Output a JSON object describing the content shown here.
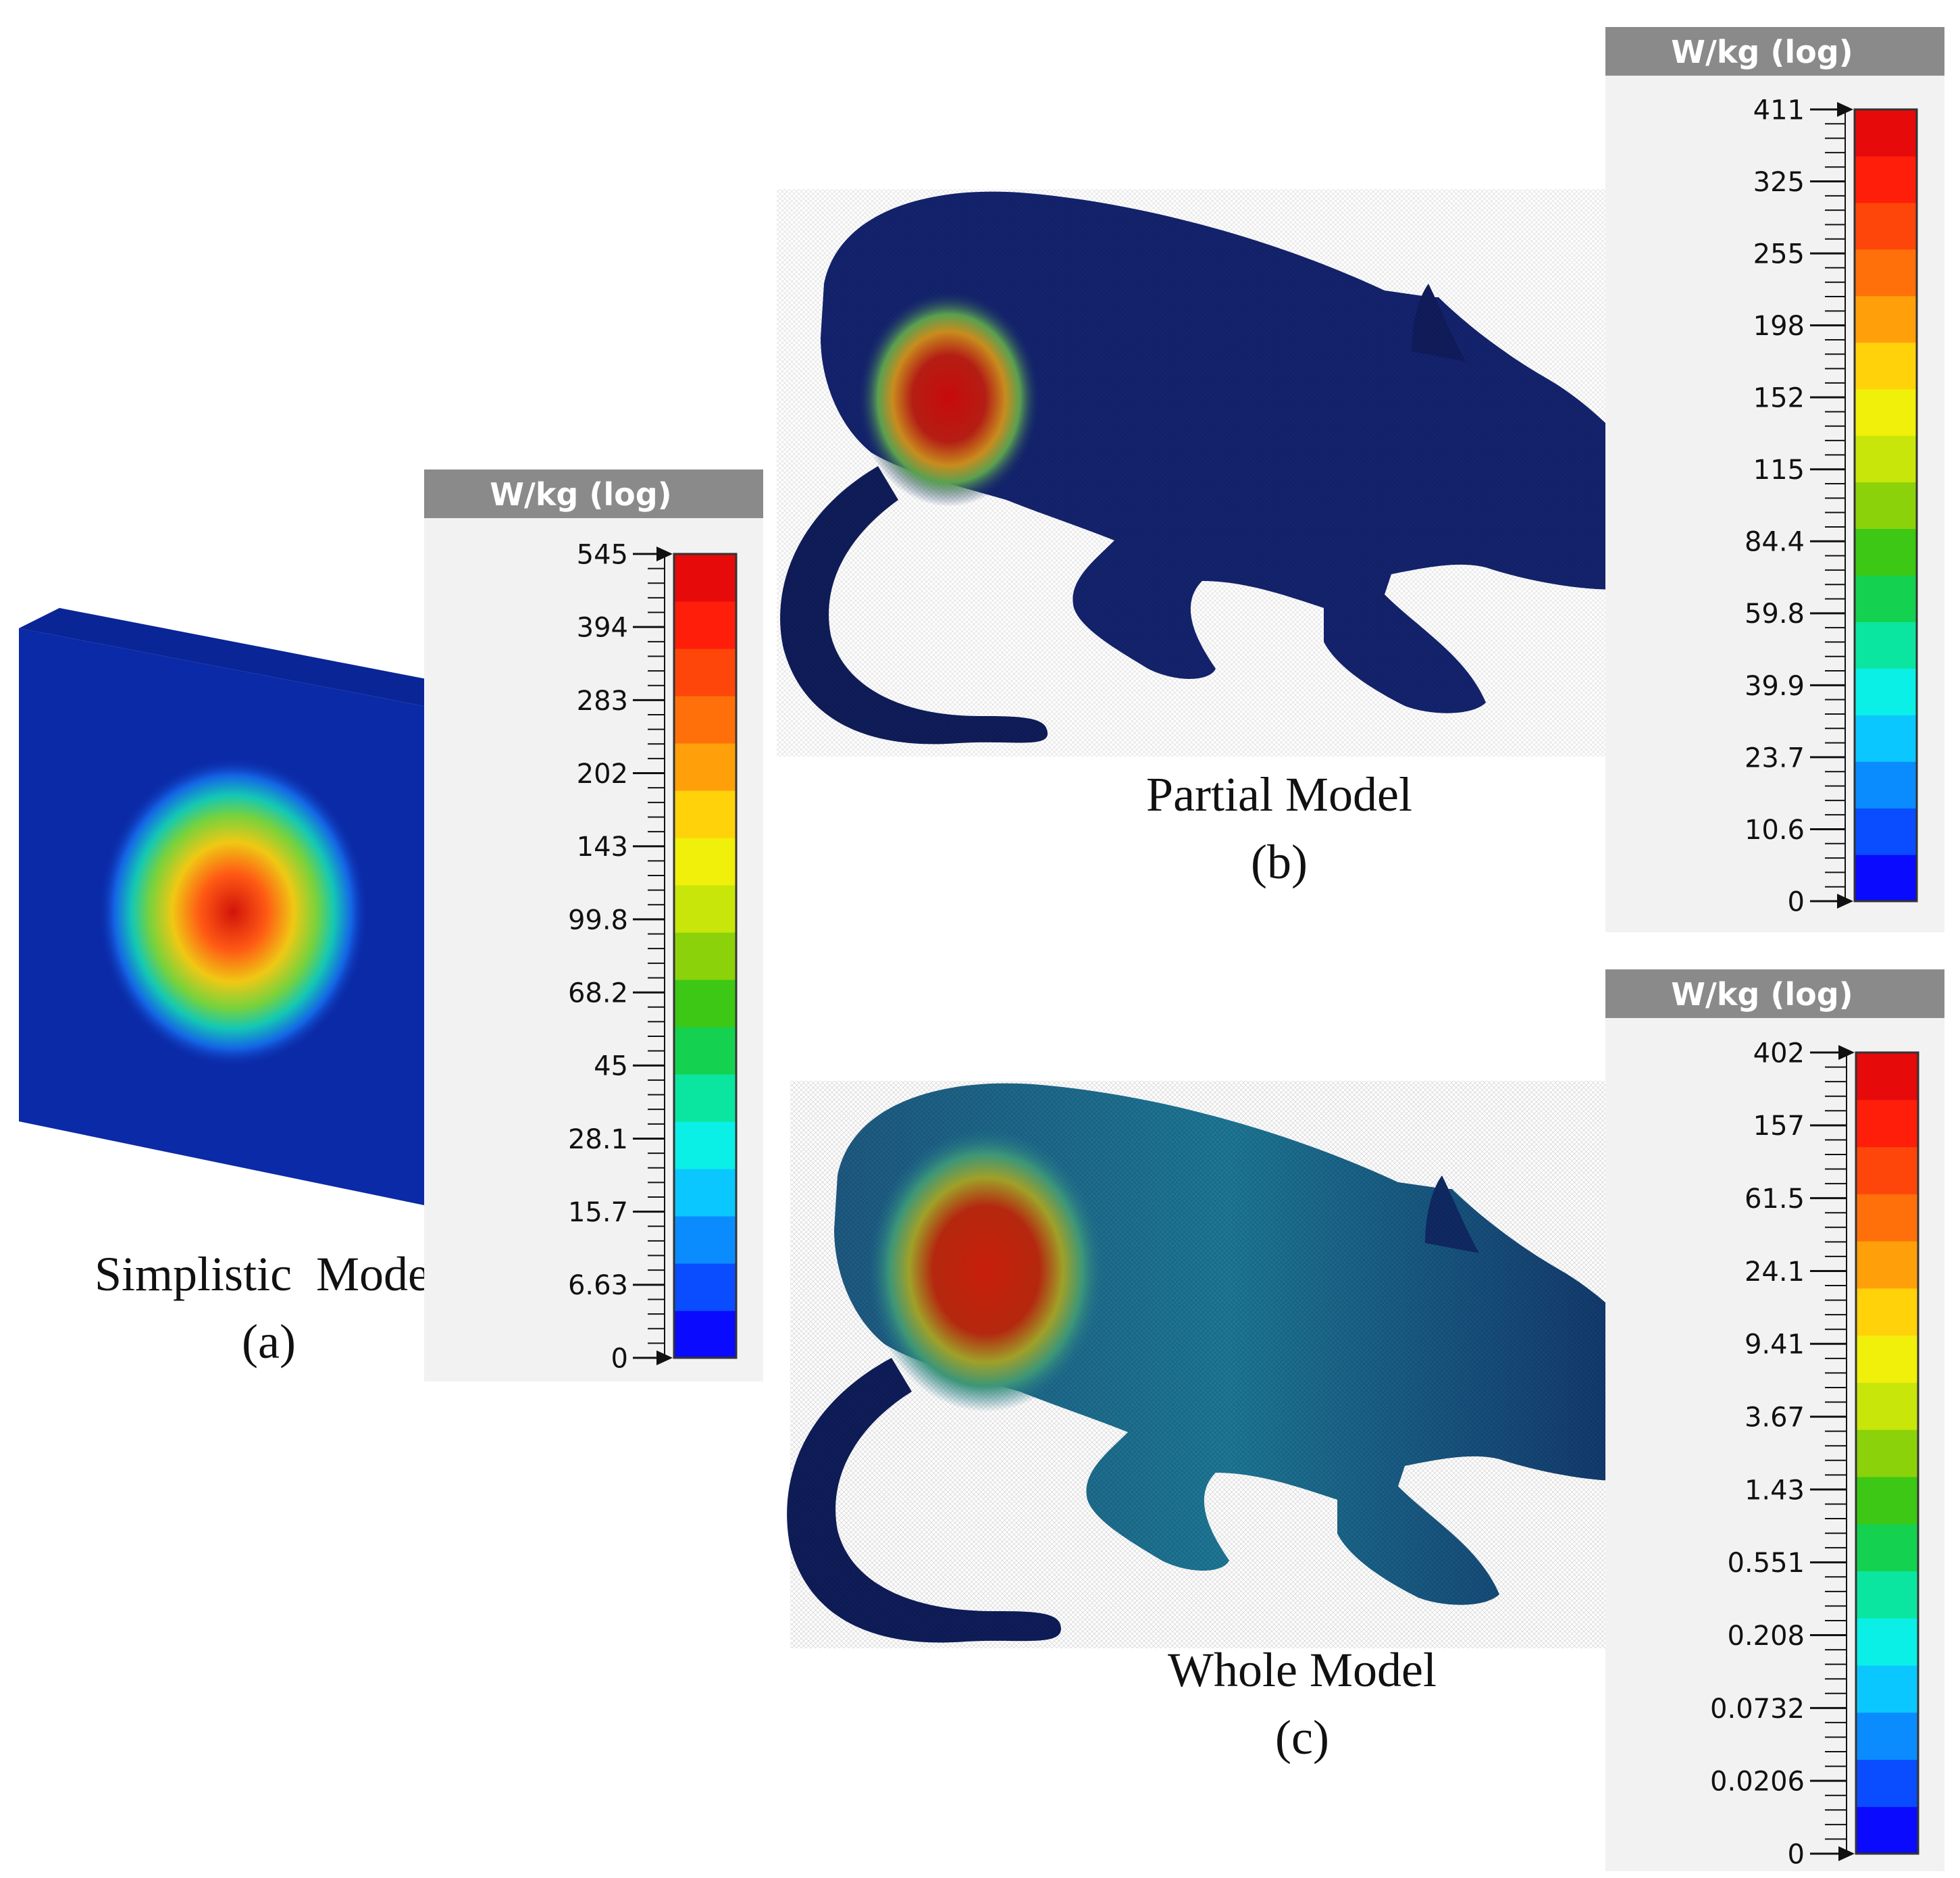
{
  "panels": [
    {
      "id": "a",
      "name_line": "Simplistic  Model",
      "letter_line": "(a)",
      "scale": {
        "title": "W/kg (log)",
        "ticks": [
          "545",
          "394",
          "283",
          "202",
          "143",
          "99.8",
          "68.2",
          "45",
          "28.1",
          "15.7",
          "6.63",
          "0"
        ]
      }
    },
    {
      "id": "b",
      "name_line": "Partial Model",
      "letter_line": "(b)",
      "scale": {
        "title": "W/kg (log)",
        "ticks": [
          "411",
          "325",
          "255",
          "198",
          "152",
          "115",
          "84.4",
          "59.8",
          "39.9",
          "23.7",
          "10.6",
          "0"
        ]
      }
    },
    {
      "id": "c",
      "name_line": "Whole Model",
      "letter_line": "(c)",
      "scale": {
        "title": "W/kg (log)",
        "ticks": [
          "402",
          "157",
          "61.5",
          "24.1",
          "9.41",
          "3.67",
          "1.43",
          "0.551",
          "0.208",
          "0.0732",
          "0.0206",
          "0"
        ]
      }
    }
  ],
  "colors": {
    "background": "#ffffff",
    "scale_header": "#8a8a8a",
    "scale_panel": "#f2f2f2",
    "model_blue": "#0b2aa8",
    "body_dark": "#101f5c",
    "hot": "#d21e0a"
  },
  "colormap": [
    "#0a0aff",
    "#0a4cff",
    "#0a8cff",
    "#0ac8ff",
    "#0af0e6",
    "#0ae6a0",
    "#14d250",
    "#3cc814",
    "#8cd20a",
    "#c8e60a",
    "#f0f00a",
    "#ffd20a",
    "#ffa00a",
    "#ff700a",
    "#ff460a",
    "#ff1e0a",
    "#e60a0a"
  ]
}
